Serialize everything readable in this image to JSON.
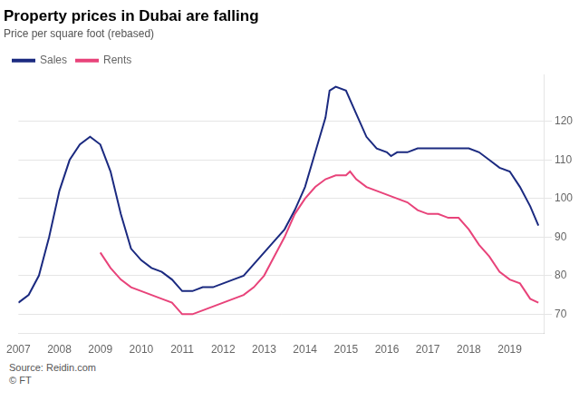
{
  "chart_data": {
    "type": "line",
    "title": "Property prices in Dubai are falling",
    "subtitle": "Price per square foot (rebased)",
    "source": "Source: Reidin.com\n© FT",
    "series": [
      {
        "name": "Sales",
        "color": "#1b2a80",
        "x": [
          2007.0,
          2007.25,
          2007.5,
          2007.75,
          2008.0,
          2008.25,
          2008.5,
          2008.75,
          2009.0,
          2009.25,
          2009.5,
          2009.75,
          2010.0,
          2010.25,
          2010.5,
          2010.75,
          2011.0,
          2011.25,
          2011.5,
          2011.75,
          2012.0,
          2012.25,
          2012.5,
          2012.75,
          2013.0,
          2013.25,
          2013.5,
          2013.75,
          2014.0,
          2014.25,
          2014.5,
          2014.6,
          2014.75,
          2015.0,
          2015.25,
          2015.5,
          2015.75,
          2016.0,
          2016.1,
          2016.25,
          2016.4,
          2016.5,
          2016.75,
          2017.0,
          2017.25,
          2017.5,
          2017.6,
          2017.75,
          2018.0,
          2018.25,
          2018.5,
          2018.75,
          2019.0,
          2019.25,
          2019.5,
          2019.7
        ],
        "values": [
          73,
          75,
          80,
          90,
          102,
          110,
          114,
          116,
          114,
          107,
          96,
          87,
          84,
          82,
          81,
          79,
          76,
          76,
          77,
          77,
          78,
          79,
          80,
          83,
          86,
          89,
          92,
          97,
          103,
          112,
          121,
          128,
          129,
          128,
          122,
          116,
          113,
          112,
          111,
          112,
          112,
          112,
          113,
          113,
          113,
          113,
          113,
          113,
          113,
          112,
          110,
          108,
          107,
          103,
          98,
          93
        ]
      },
      {
        "name": "Rents",
        "color": "#e8437a",
        "x": [
          2009.0,
          2009.25,
          2009.5,
          2009.75,
          2010.0,
          2010.25,
          2010.5,
          2010.75,
          2011.0,
          2011.25,
          2011.5,
          2011.75,
          2012.0,
          2012.25,
          2012.5,
          2012.75,
          2013.0,
          2013.25,
          2013.5,
          2013.75,
          2014.0,
          2014.25,
          2014.5,
          2014.75,
          2015.0,
          2015.1,
          2015.25,
          2015.5,
          2015.75,
          2016.0,
          2016.25,
          2016.5,
          2016.75,
          2017.0,
          2017.25,
          2017.5,
          2017.75,
          2018.0,
          2018.25,
          2018.5,
          2018.75,
          2019.0,
          2019.25,
          2019.5,
          2019.7
        ],
        "values": [
          86,
          82,
          79,
          77,
          76,
          75,
          74,
          73,
          70,
          70,
          71,
          72,
          73,
          74,
          75,
          77,
          80,
          85,
          90,
          96,
          100,
          103,
          105,
          106,
          106,
          107,
          105,
          103,
          102,
          101,
          100,
          99,
          97,
          96,
          96,
          95,
          95,
          92,
          88,
          85,
          81,
          79,
          78,
          74,
          73
        ]
      }
    ],
    "xlim": [
      2007.0,
      2019.85
    ],
    "xticks": [
      2007,
      2008,
      2009,
      2010,
      2011,
      2012,
      2013,
      2014,
      2015,
      2016,
      2017,
      2018,
      2019
    ],
    "ylim": [
      65,
      132
    ],
    "yticks": [
      70,
      80,
      90,
      100,
      110,
      120
    ],
    "grid": "y",
    "legend": "top-left"
  }
}
